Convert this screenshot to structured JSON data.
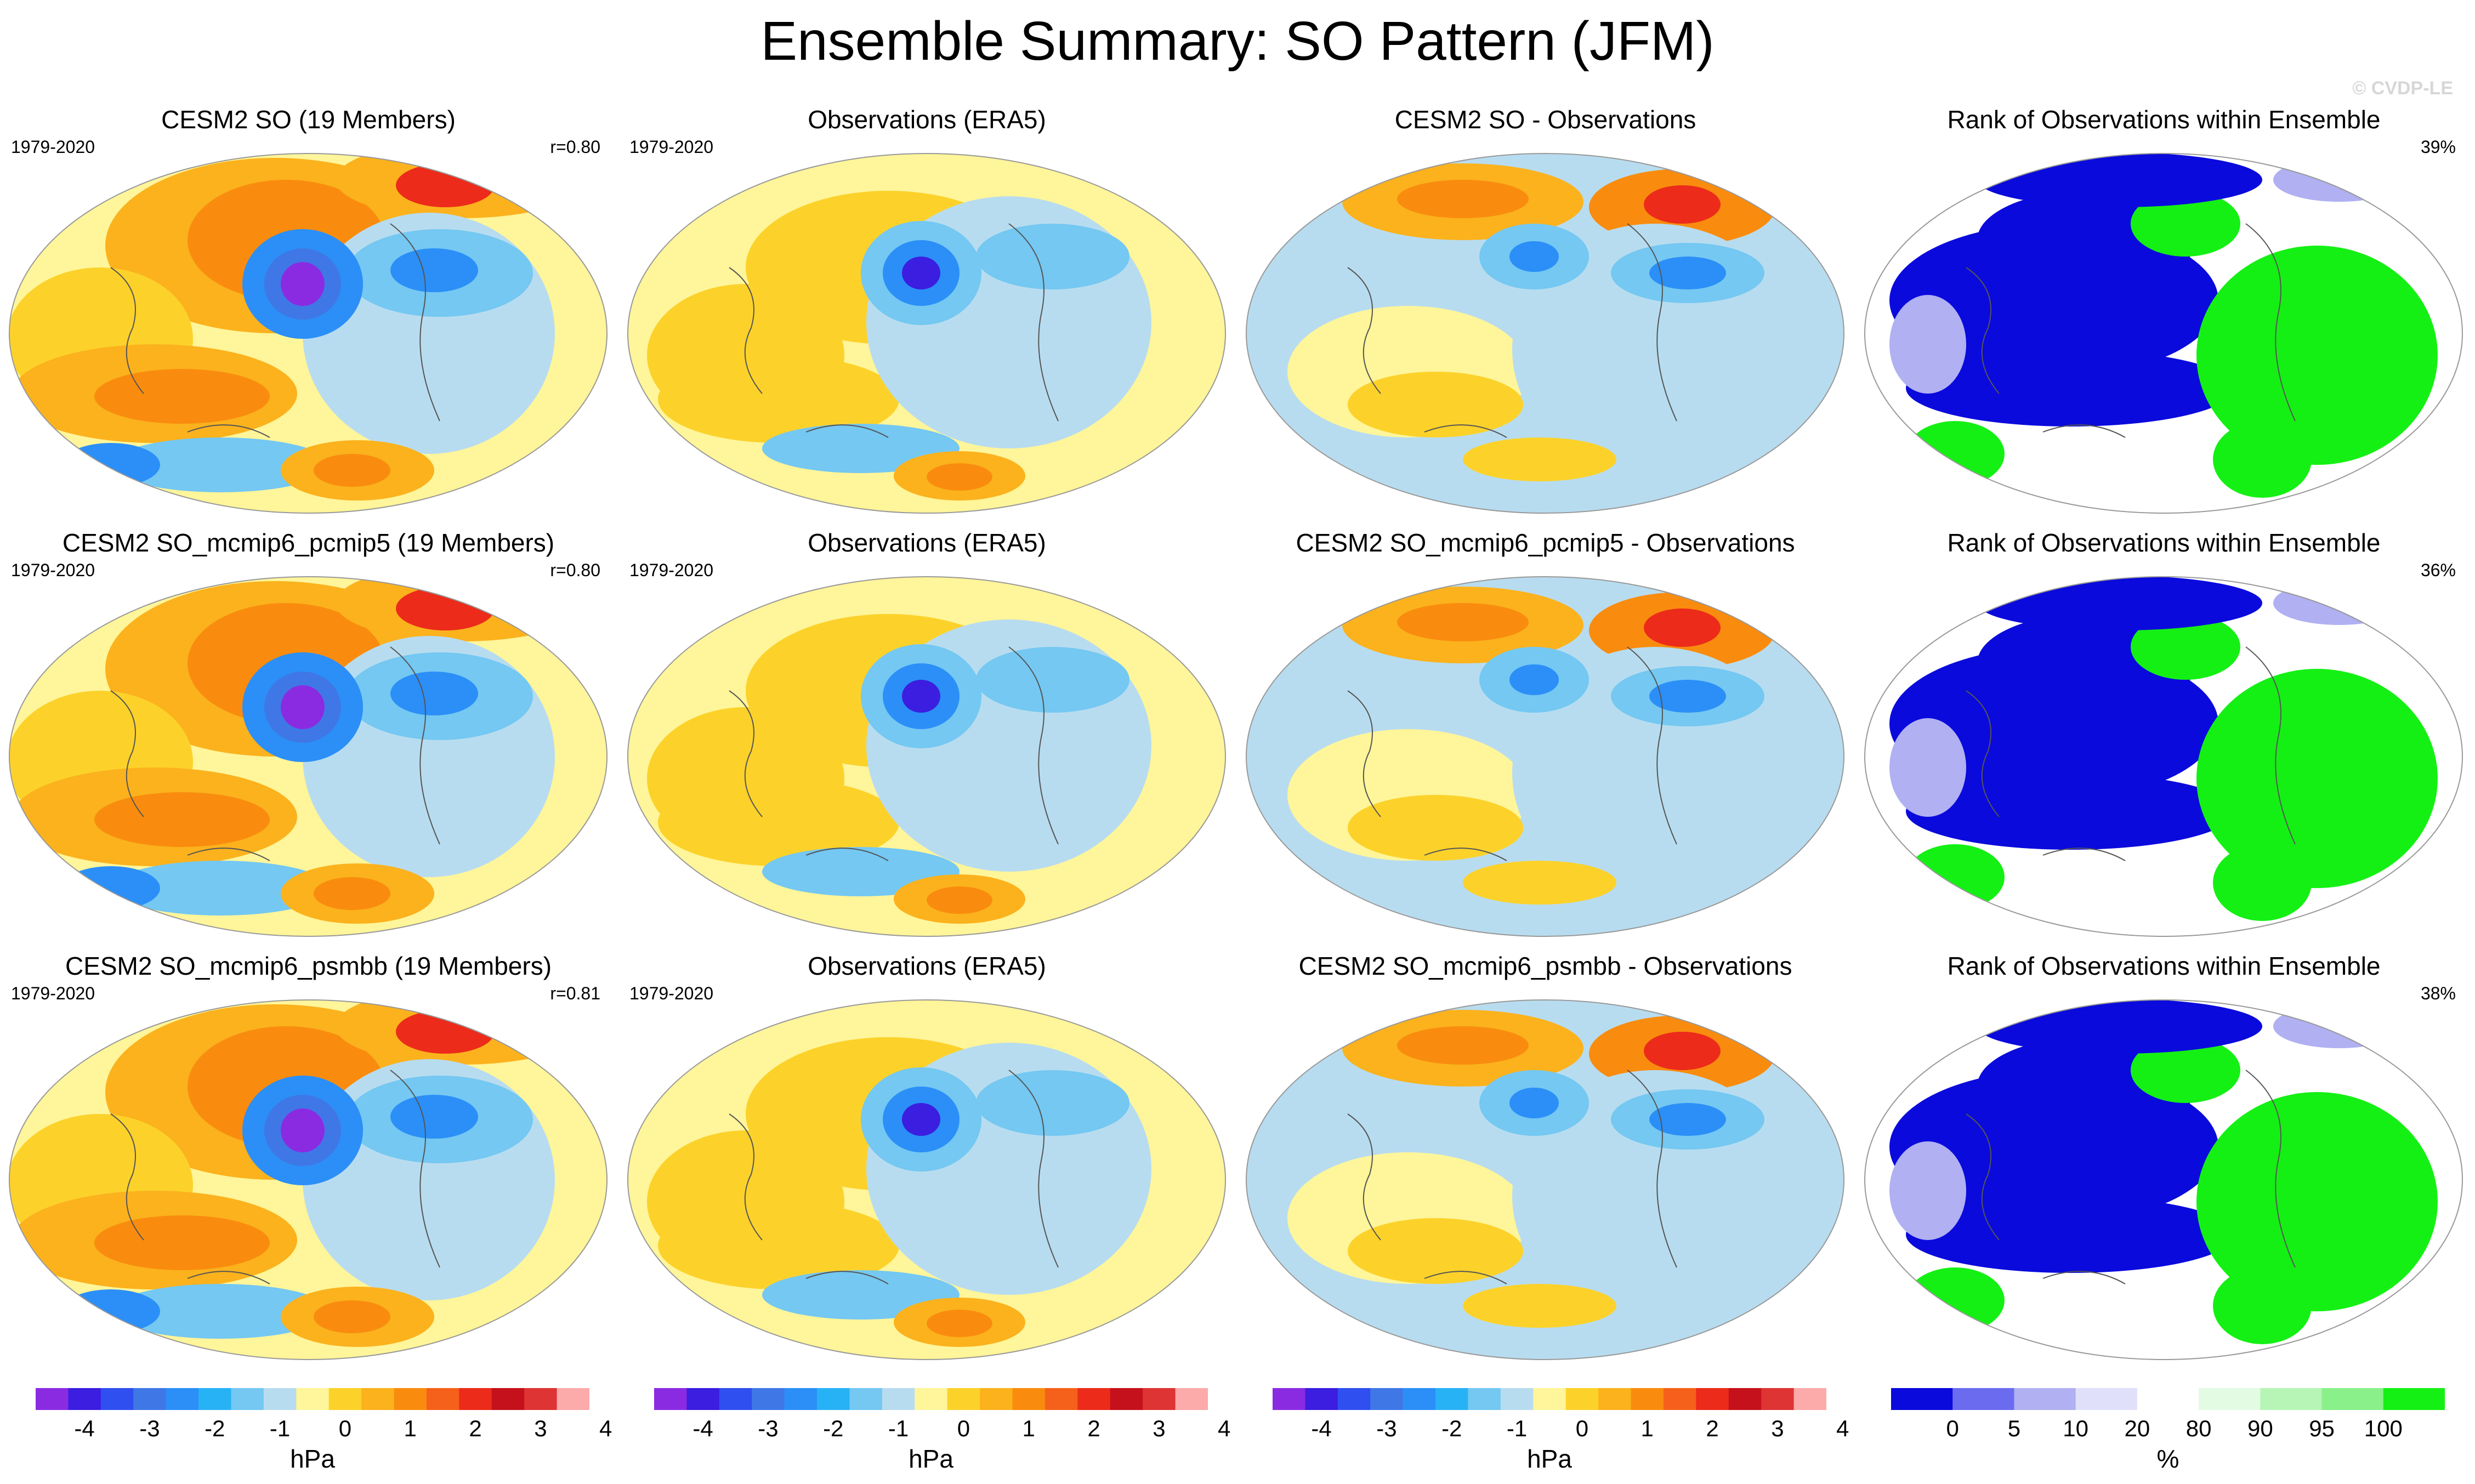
{
  "figure": {
    "title": "Ensemble Summary: SO Pattern (JFM)",
    "watermark": "© CVDP-LE"
  },
  "rows": [
    {
      "model_title": "CESM2 SO (19 Members)",
      "obs_title": "Observations (ERA5)",
      "diff_title": "CESM2 SO - Observations",
      "rank_title": "Rank of Observations within Ensemble",
      "period": "1979-2020",
      "obs_period": "1979-2020",
      "correlation": "r=0.80",
      "rank_percent": "39%"
    },
    {
      "model_title": "CESM2 SO_mcmip6_pcmip5 (19 Members)",
      "obs_title": "Observations (ERA5)",
      "diff_title": "CESM2 SO_mcmip6_pcmip5 - Observations",
      "rank_title": "Rank of Observations within Ensemble",
      "period": "1979-2020",
      "obs_period": "1979-2020",
      "correlation": "r=0.80",
      "rank_percent": "36%"
    },
    {
      "model_title": "CESM2 SO_mcmip6_psmbb (19 Members)",
      "obs_title": "Observations (ERA5)",
      "diff_title": "CESM2 SO_mcmip6_psmbb - Observations",
      "rank_title": "Rank of Observations within Ensemble",
      "period": "1979-2020",
      "obs_period": "1979-2020",
      "correlation": "r=0.81",
      "rank_percent": "38%"
    }
  ],
  "slp_colorbar": {
    "units": "hPa",
    "tick_labels": [
      "-4",
      "-3",
      "-2",
      "-1",
      "0",
      "1",
      "2",
      "3",
      "4"
    ],
    "colors": [
      "#8a2be2",
      "#3b1ee0",
      "#2f4ff0",
      "#3f78e6",
      "#2b8ff7",
      "#28b2f6",
      "#74c8f2",
      "#b8dcef",
      "#fff59a",
      "#fcd22a",
      "#fbb21d",
      "#f98c0e",
      "#f5601a",
      "#ec2b1a",
      "#c5111b",
      "#de3434",
      "#fcaaaa"
    ]
  },
  "rank_colorbar": {
    "units": "%",
    "tick_labels": [
      "0",
      "5",
      "10",
      "20",
      "80",
      "90",
      "95",
      "100"
    ],
    "colors": [
      "#0a0adc",
      "#6b6bf0",
      "#b0b0f2",
      "#e0e0fa",
      "#ffffff",
      "#e2fbe2",
      "#b6f5b6",
      "#8af08a",
      "#14f014"
    ]
  }
}
